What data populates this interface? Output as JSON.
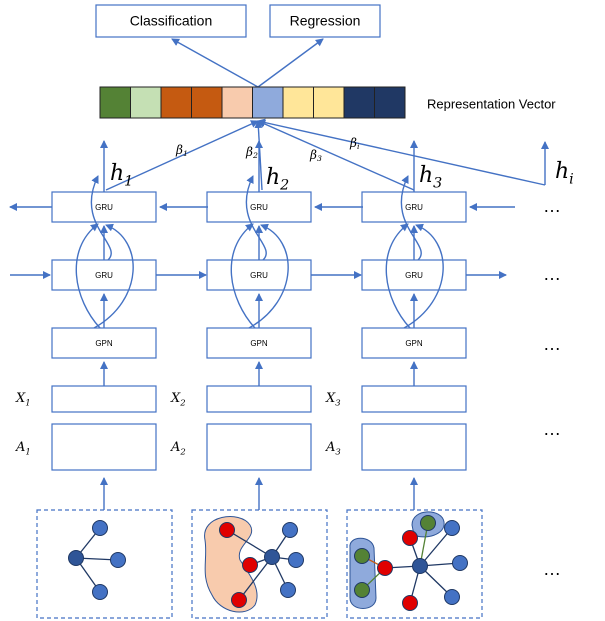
{
  "outputs": [
    "Classification",
    "Regression"
  ],
  "vector_label": "Representation Vector",
  "weights": [
    {
      "base": "β",
      "sub": "1"
    },
    {
      "base": "β",
      "sub": "2"
    },
    {
      "base": "β",
      "sub": "3"
    },
    {
      "base": "β",
      "sub": "i"
    }
  ],
  "hidden": [
    {
      "base": "h",
      "sub": "1"
    },
    {
      "base": "h",
      "sub": "2"
    },
    {
      "base": "h",
      "sub": "3"
    },
    {
      "base": "h",
      "sub": "i"
    }
  ],
  "columns": [
    {
      "gru_top": "GRU",
      "gru_bottom": "GRU",
      "gpn": "GPN",
      "x": {
        "base": "X",
        "sub": "1"
      },
      "a": {
        "base": "A",
        "sub": "1"
      }
    },
    {
      "gru_top": "GRU",
      "gru_bottom": "GRU",
      "gpn": "GPN",
      "x": {
        "base": "X",
        "sub": "2"
      },
      "a": {
        "base": "A",
        "sub": "2"
      }
    },
    {
      "gru_top": "GRU",
      "gru_bottom": "GRU",
      "gpn": "GPN",
      "x": {
        "base": "X",
        "sub": "3"
      },
      "a": {
        "base": "A",
        "sub": "3"
      }
    }
  ],
  "ellipsis": [
    "…",
    "…",
    "…",
    "…",
    "…"
  ]
}
